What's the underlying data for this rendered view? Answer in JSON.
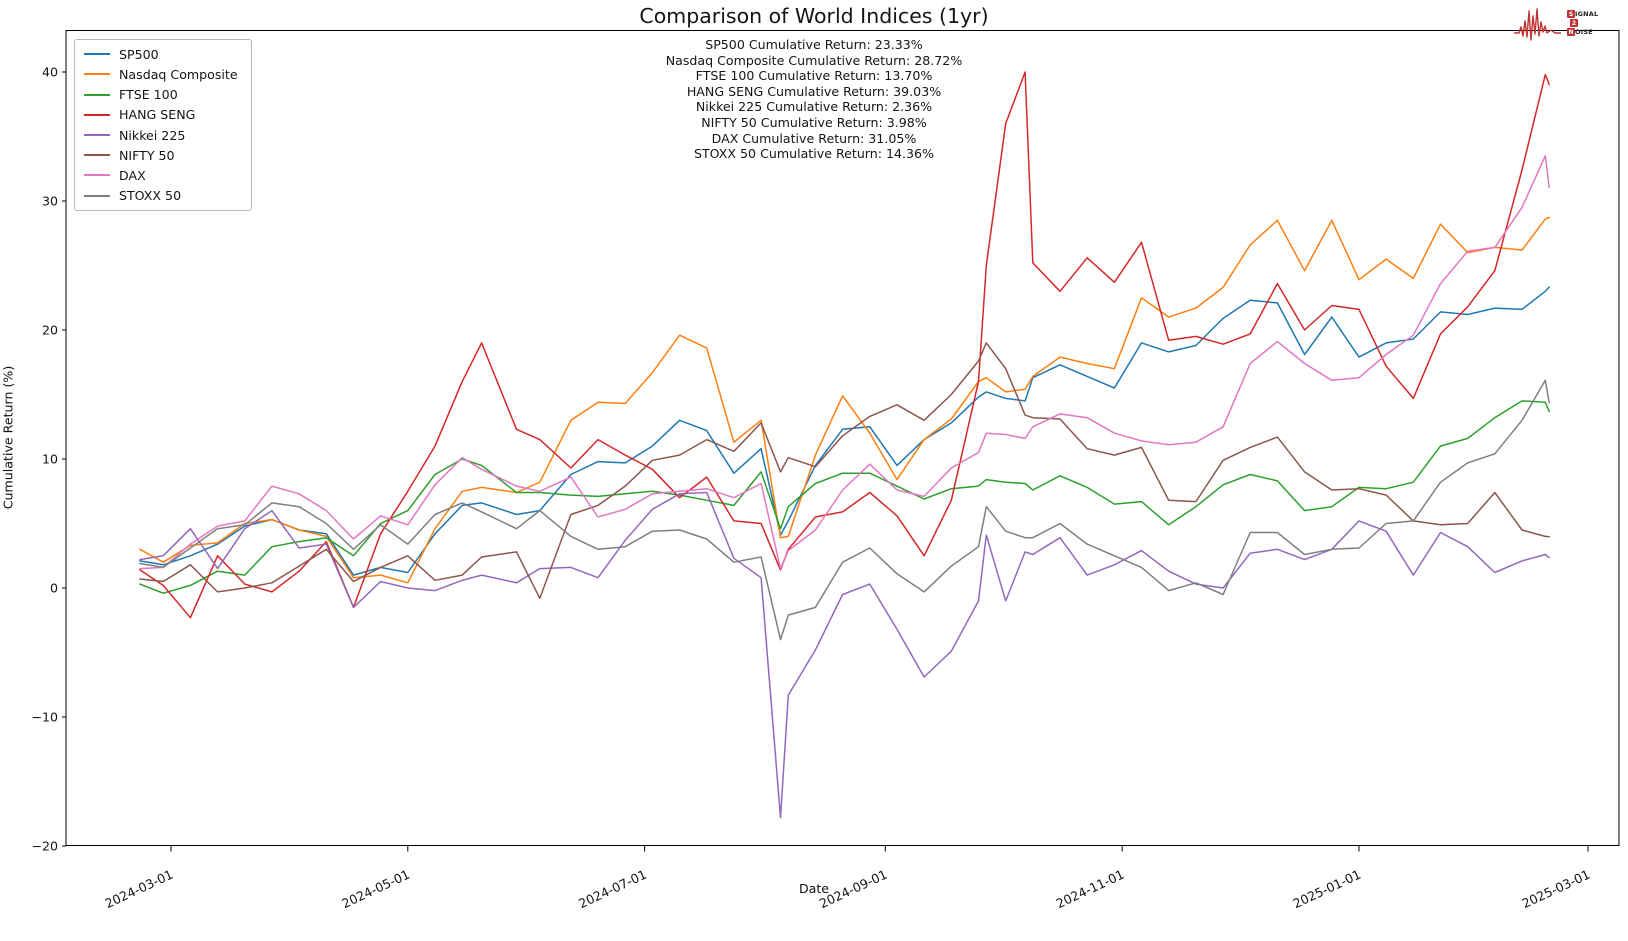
{
  "window_title": "Comparison of World Indices (1yr)",
  "chart_data": {
    "type": "line",
    "title": "Comparison of World Indices (1yr)",
    "xlabel": "Date",
    "ylabel": "Cumulative Return (%)",
    "grid": false,
    "legend_position": "upper left",
    "x_range": [
      "2024-02-22",
      "2025-02-19"
    ],
    "ylim": [
      -20.7,
      43.2
    ],
    "x_ticks": [
      "2024-03-01",
      "2024-05-01",
      "2024-07-01",
      "2024-09-01",
      "2024-11-01",
      "2025-01-01",
      "2025-03-01"
    ],
    "y_ticks": [
      "40",
      "30",
      "20",
      "10",
      "0",
      "−10",
      "−20"
    ],
    "y_tick_values": [
      40,
      30,
      20,
      10,
      0,
      -10,
      -20
    ],
    "annotations": [
      "SP500 Cumulative Return: 23.33%",
      "Nasdaq Composite Cumulative Return: 28.72%",
      "FTSE 100 Cumulative Return: 13.70%",
      "HANG SENG Cumulative Return: 39.03%",
      "Nikkei 225 Cumulative Return: 2.36%",
      "NIFTY 50 Cumulative Return: 3.98%",
      "DAX Cumulative Return: 31.05%",
      "STOXX 50 Cumulative Return: 14.36%"
    ],
    "dates": [
      "2024-02-22",
      "2024-02-28",
      "2024-03-06",
      "2024-03-13",
      "2024-03-20",
      "2024-03-27",
      "2024-04-03",
      "2024-04-10",
      "2024-04-17",
      "2024-04-24",
      "2024-05-01",
      "2024-05-08",
      "2024-05-15",
      "2024-05-20",
      "2024-05-29",
      "2024-06-04",
      "2024-06-12",
      "2024-06-19",
      "2024-06-26",
      "2024-07-03",
      "2024-07-10",
      "2024-07-17",
      "2024-07-24",
      "2024-07-31",
      "2024-08-05",
      "2024-08-07",
      "2024-08-14",
      "2024-08-21",
      "2024-08-28",
      "2024-09-04",
      "2024-09-11",
      "2024-09-18",
      "2024-09-25",
      "2024-09-27",
      "2024-10-02",
      "2024-10-07",
      "2024-10-09",
      "2024-10-16",
      "2024-10-23",
      "2024-10-30",
      "2024-11-06",
      "2024-11-13",
      "2024-11-20",
      "2024-11-27",
      "2024-12-04",
      "2024-12-11",
      "2024-12-18",
      "2024-12-25",
      "2025-01-01",
      "2025-01-08",
      "2025-01-15",
      "2025-01-22",
      "2025-01-29",
      "2025-02-05",
      "2025-02-12",
      "2025-02-18",
      "2025-02-19"
    ],
    "series": [
      {
        "name": "SP500",
        "color": "#1f77b4",
        "final_return_pct": 23.33,
        "values": [
          2.1,
          1.8,
          2.5,
          3.4,
          4.8,
          5.3,
          4.5,
          4.2,
          1.0,
          1.6,
          1.2,
          4.2,
          6.4,
          6.6,
          5.7,
          6.0,
          8.8,
          9.8,
          9.7,
          11.0,
          13.0,
          12.2,
          8.9,
          10.8,
          4.1,
          5.2,
          9.5,
          12.3,
          12.5,
          9.5,
          11.5,
          12.8,
          14.8,
          15.2,
          14.7,
          14.5,
          16.3,
          17.3,
          16.4,
          15.5,
          19.0,
          18.3,
          18.8,
          20.9,
          22.3,
          22.1,
          18.1,
          21.0,
          17.9,
          19.0,
          19.3,
          21.4,
          21.2,
          21.7,
          21.6,
          23.0,
          23.33
        ]
      },
      {
        "name": "Nasdaq Composite",
        "color": "#ff7f0e",
        "final_return_pct": 28.72,
        "values": [
          3.0,
          2.0,
          3.3,
          3.5,
          5.0,
          5.3,
          4.5,
          4.0,
          0.8,
          1.0,
          0.4,
          4.6,
          7.5,
          7.8,
          7.4,
          8.2,
          13.0,
          14.4,
          14.3,
          16.7,
          19.6,
          18.6,
          11.3,
          13.0,
          3.9,
          4.0,
          10.3,
          14.9,
          12.0,
          8.4,
          11.5,
          13.1,
          16.0,
          16.3,
          15.2,
          15.4,
          16.4,
          17.9,
          17.4,
          17.0,
          22.5,
          21.0,
          21.7,
          23.3,
          26.6,
          28.5,
          24.6,
          28.5,
          23.9,
          25.5,
          24.0,
          28.2,
          26.0,
          26.4,
          26.2,
          28.6,
          28.72
        ]
      },
      {
        "name": "FTSE 100",
        "color": "#2ca02c",
        "final_return_pct": 13.7,
        "values": [
          0.3,
          -0.4,
          0.2,
          1.3,
          1.0,
          3.2,
          3.6,
          3.9,
          2.5,
          5.0,
          6.0,
          8.8,
          10.0,
          9.5,
          7.4,
          7.4,
          7.2,
          7.1,
          7.3,
          7.5,
          7.2,
          6.8,
          6.4,
          9.0,
          4.6,
          6.3,
          8.1,
          8.9,
          8.9,
          7.9,
          6.9,
          7.7,
          7.9,
          8.4,
          8.2,
          8.1,
          7.6,
          8.7,
          7.8,
          6.5,
          6.7,
          4.9,
          6.3,
          8.0,
          8.8,
          8.3,
          6.0,
          6.3,
          7.8,
          7.7,
          8.2,
          11.0,
          11.6,
          13.2,
          14.5,
          14.4,
          13.7
        ]
      },
      {
        "name": "HANG SENG",
        "color": "#d62728",
        "final_return_pct": 39.03,
        "values": [
          1.4,
          0.2,
          -2.3,
          2.5,
          0.3,
          -0.3,
          1.3,
          3.6,
          -1.5,
          4.2,
          7.5,
          11.0,
          16.0,
          19.0,
          12.3,
          11.5,
          9.3,
          11.5,
          10.3,
          9.2,
          7.0,
          8.6,
          5.2,
          5.0,
          1.4,
          3.0,
          5.5,
          5.9,
          7.4,
          5.6,
          2.5,
          6.8,
          16.0,
          25.0,
          36.0,
          40.0,
          25.2,
          23.0,
          25.6,
          23.7,
          26.8,
          19.2,
          19.5,
          18.9,
          19.7,
          23.6,
          20.0,
          21.9,
          21.6,
          17.2,
          14.7,
          19.7,
          21.8,
          24.6,
          32.4,
          39.8,
          39.03
        ]
      },
      {
        "name": "Nikkei 225",
        "color": "#9467bd",
        "final_return_pct": 2.36,
        "values": [
          2.2,
          2.5,
          4.6,
          1.5,
          4.6,
          6.0,
          3.1,
          3.4,
          -1.5,
          0.5,
          0.0,
          -0.2,
          0.6,
          1.0,
          0.4,
          1.5,
          1.6,
          0.8,
          3.7,
          6.1,
          7.3,
          7.4,
          2.3,
          0.8,
          -17.8,
          -8.3,
          -4.8,
          -0.5,
          0.3,
          -3.2,
          -6.9,
          -4.9,
          -1.0,
          4.1,
          -1.0,
          2.8,
          2.6,
          3.9,
          1.0,
          1.8,
          2.9,
          1.3,
          0.3,
          0.0,
          2.7,
          3.0,
          2.2,
          3.0,
          5.2,
          4.4,
          1.0,
          4.3,
          3.2,
          1.2,
          2.1,
          2.6,
          2.36
        ]
      },
      {
        "name": "NIFTY 50",
        "color": "#8c564b",
        "final_return_pct": 3.98,
        "values": [
          0.7,
          0.5,
          1.8,
          -0.3,
          0.0,
          0.4,
          1.7,
          3.0,
          0.5,
          1.6,
          2.5,
          0.6,
          1.0,
          2.4,
          2.8,
          -0.8,
          5.7,
          6.4,
          7.9,
          9.9,
          10.3,
          11.5,
          10.6,
          12.8,
          9.0,
          10.1,
          9.4,
          11.8,
          13.3,
          14.2,
          13.0,
          15.0,
          17.6,
          19.0,
          17.0,
          13.4,
          13.2,
          13.1,
          10.8,
          10.3,
          10.9,
          6.8,
          6.7,
          9.9,
          10.9,
          11.7,
          9.0,
          7.6,
          7.7,
          7.2,
          5.2,
          4.9,
          5.0,
          7.4,
          4.5,
          4.0,
          3.98
        ]
      },
      {
        "name": "DAX",
        "color": "#e377c2",
        "final_return_pct": 31.05,
        "values": [
          1.5,
          1.6,
          3.4,
          4.8,
          5.2,
          7.9,
          7.3,
          6.0,
          3.8,
          5.6,
          4.9,
          8.0,
          10.1,
          9.2,
          7.9,
          7.5,
          8.6,
          5.5,
          6.1,
          7.3,
          7.5,
          7.7,
          7.0,
          8.1,
          1.5,
          2.9,
          4.5,
          7.6,
          9.6,
          7.6,
          7.1,
          9.3,
          10.5,
          12.0,
          11.9,
          11.6,
          12.5,
          13.5,
          13.2,
          12.0,
          11.4,
          11.1,
          11.3,
          12.5,
          17.4,
          19.1,
          17.4,
          16.1,
          16.3,
          18.1,
          19.6,
          23.6,
          26.1,
          26.4,
          29.5,
          33.5,
          31.05
        ]
      },
      {
        "name": "STOXX 50",
        "color": "#7f7f7f",
        "final_return_pct": 14.36,
        "values": [
          1.9,
          1.6,
          3.1,
          4.6,
          4.9,
          6.6,
          6.3,
          5.0,
          3.0,
          4.9,
          3.4,
          5.7,
          6.6,
          5.9,
          4.6,
          6.0,
          4.0,
          3.0,
          3.2,
          4.4,
          4.5,
          3.8,
          2.0,
          2.4,
          -4.0,
          -2.1,
          -1.5,
          2.0,
          3.1,
          1.1,
          -0.3,
          1.7,
          3.2,
          6.3,
          4.4,
          3.9,
          3.9,
          5.0,
          3.4,
          2.5,
          1.6,
          -0.2,
          0.4,
          -0.5,
          4.3,
          4.3,
          2.6,
          3.0,
          3.1,
          5.0,
          5.2,
          8.2,
          9.7,
          10.4,
          13.0,
          16.1,
          14.36
        ]
      }
    ]
  },
  "logo": {
    "word1_first": "S",
    "word1_rest": "IGNAL",
    "word2": "2",
    "word3_first": "N",
    "word3_rest": "OISE",
    "accent_color": "#c03434"
  }
}
